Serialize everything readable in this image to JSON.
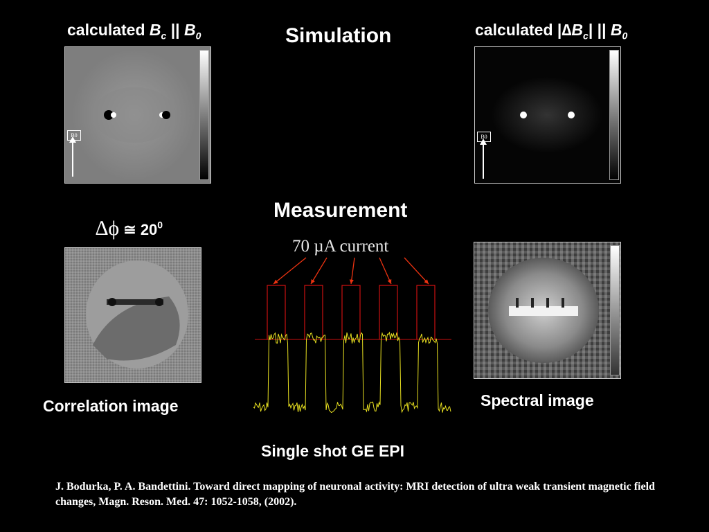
{
  "titles": {
    "left_top_prefix": "calculated ",
    "left_top_B": "B",
    "left_top_sub": "c",
    "left_top_mid": " || ",
    "left_top_B0": "B",
    "left_top_B0_sub": "0",
    "simulation": "Simulation",
    "right_top_prefix": "calculated |",
    "right_top_delta": "∆",
    "right_top_B": "B",
    "right_top_sub": "c",
    "right_top_mid": "|  || ",
    "right_top_B0": "B",
    "right_top_B0_sub": "0",
    "measurement": "Measurement",
    "current": "70 µA current",
    "phase_delta": "∆ϕ",
    "phase_approx": " ≅ 20",
    "phase_sup": "0",
    "correlation": "Correlation image",
    "spectral": "Spectral image",
    "epi": "Single shot GE EPI",
    "reference": "J. Bodurka, P. A. Bandettini. Toward direct mapping of neuronal activity: MRI detection of ultra weak transient magnetic field changes, Magn. Reson. Med. 47: 1052-1058, (2002)."
  },
  "panel_labels": {
    "b0_left": "B0",
    "b0_right": "B0"
  },
  "colors": {
    "background": "#000000",
    "stimulus": "#cc1111",
    "signal": "#e8e020",
    "arrow": "#ee3311"
  },
  "stimulus_pulses": 5
}
